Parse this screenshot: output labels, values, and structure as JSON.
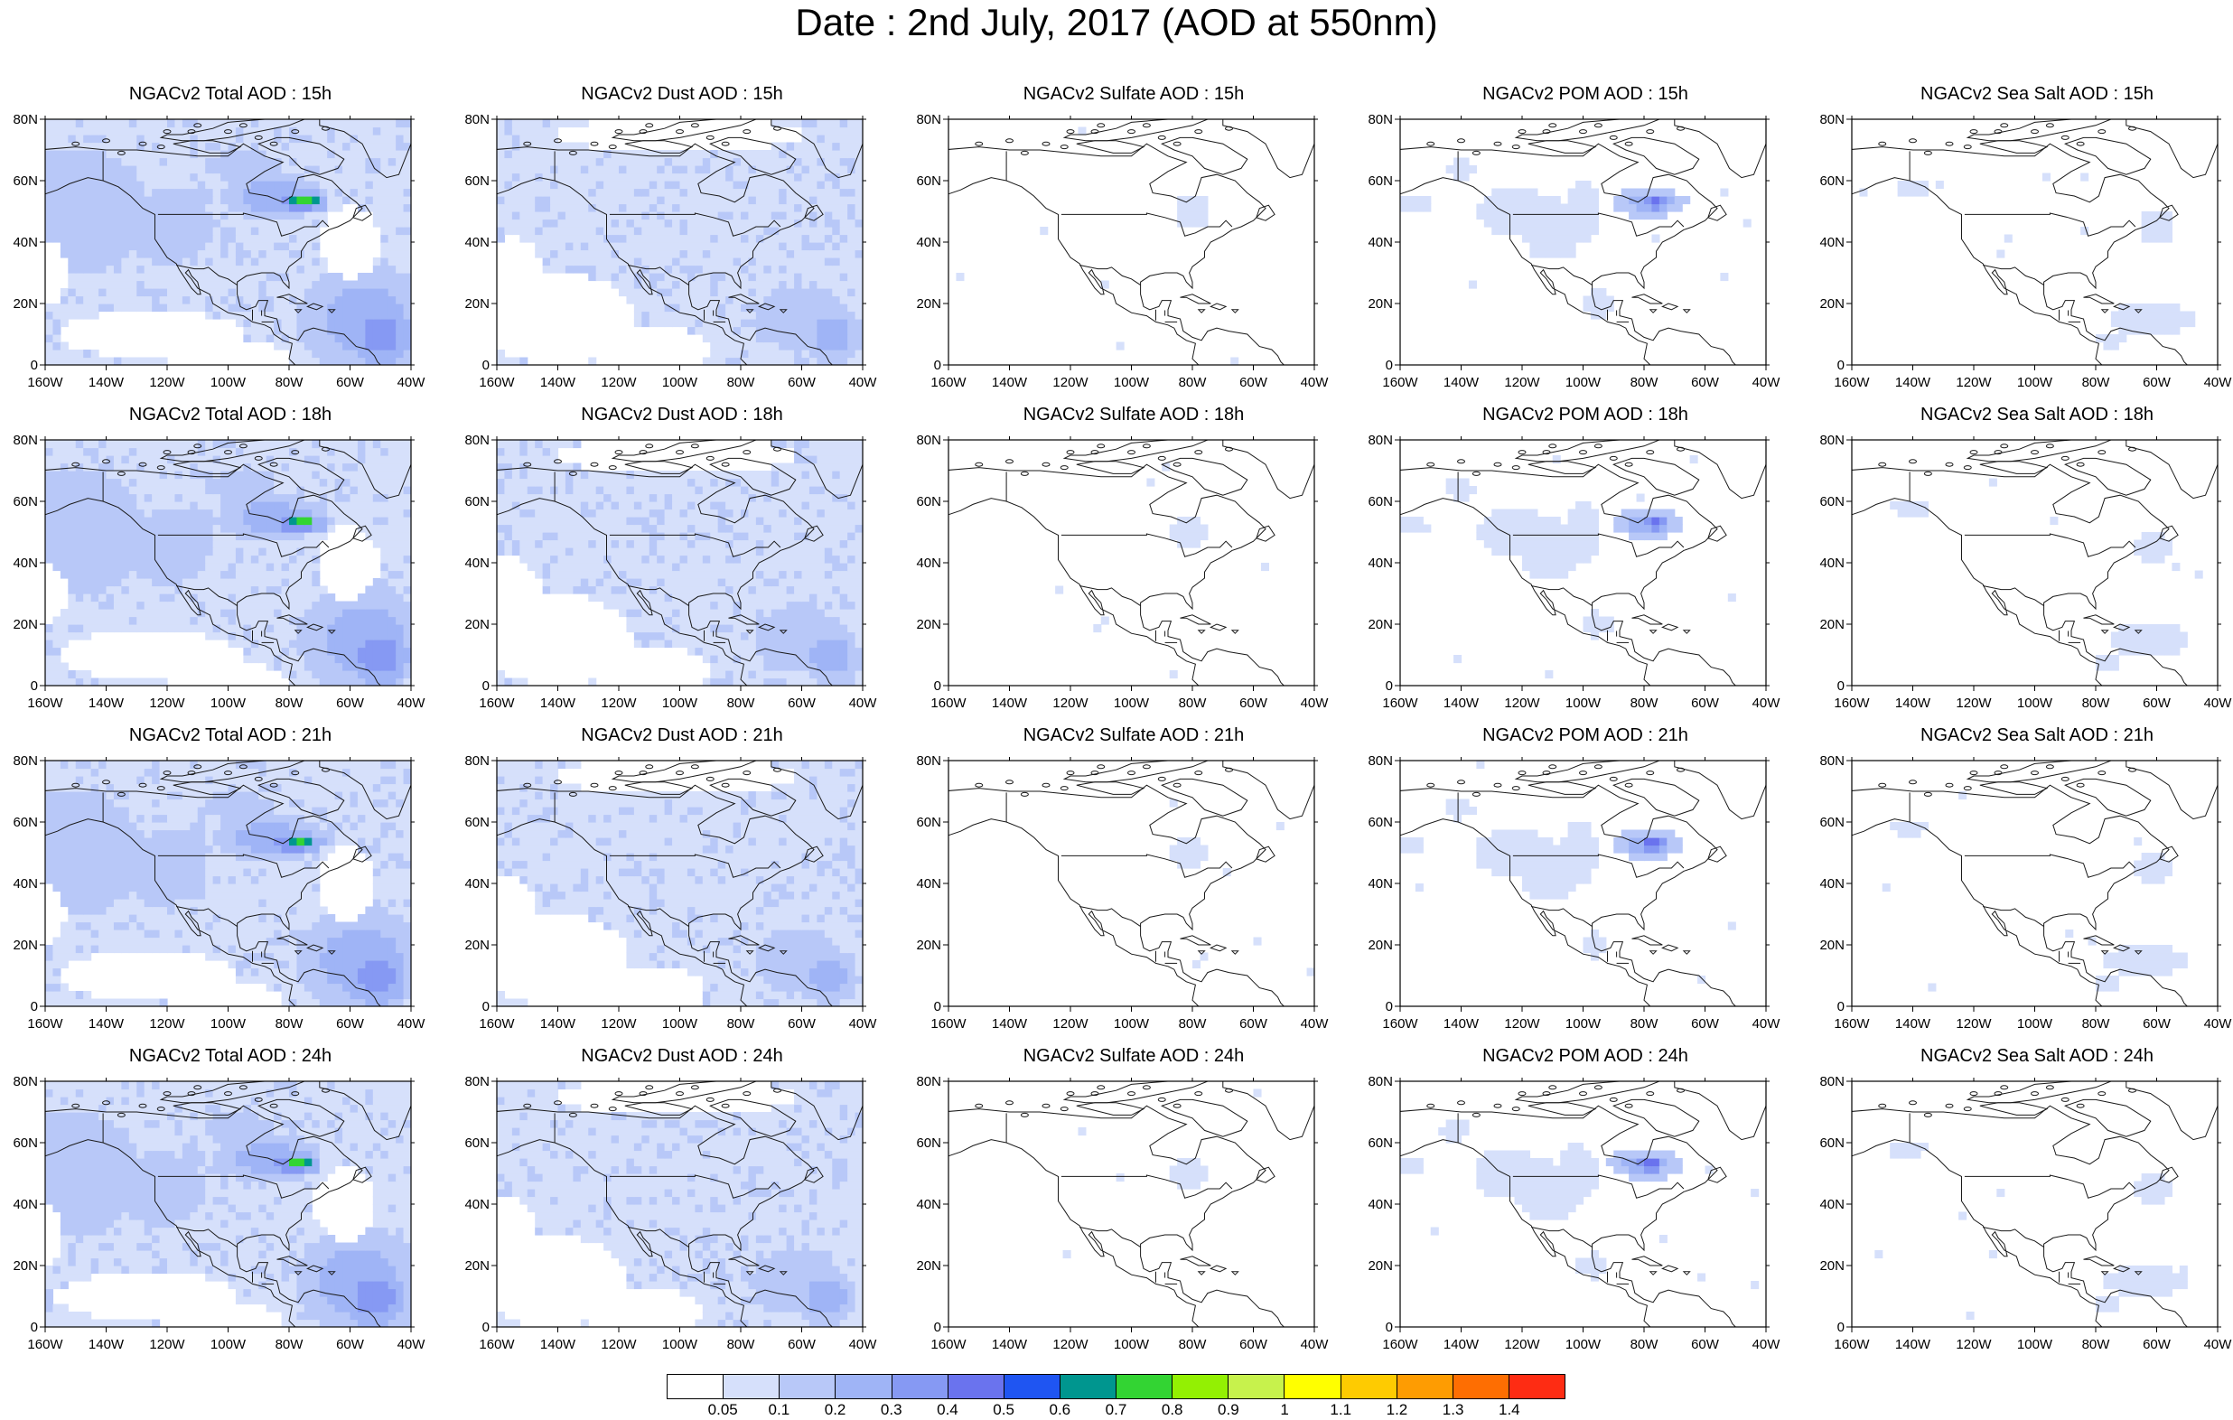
{
  "title": "Date : 2nd July, 2017 (AOD at 550nm)",
  "axes": {
    "x_ticks": [
      "160W",
      "140W",
      "120W",
      "100W",
      "80W",
      "60W",
      "40W"
    ],
    "y_ticks": [
      "0",
      "20N",
      "40N",
      "60N",
      "80N"
    ],
    "lon_range": [
      -160,
      -40
    ],
    "lat_range": [
      0,
      80
    ]
  },
  "panels": [
    {
      "title": "NGACv2 Total AOD : 15h",
      "type": "total"
    },
    {
      "title": "NGACv2 Dust AOD : 15h",
      "type": "dust"
    },
    {
      "title": "NGACv2 Sulfate AOD : 15h",
      "type": "sulfate"
    },
    {
      "title": "NGACv2 POM AOD : 15h",
      "type": "pom"
    },
    {
      "title": "NGACv2 Sea Salt AOD : 15h",
      "type": "seasalt"
    },
    {
      "title": "NGACv2 Total AOD : 18h",
      "type": "total"
    },
    {
      "title": "NGACv2 Dust AOD : 18h",
      "type": "dust"
    },
    {
      "title": "NGACv2 Sulfate AOD : 18h",
      "type": "sulfate"
    },
    {
      "title": "NGACv2 POM AOD : 18h",
      "type": "pom"
    },
    {
      "title": "NGACv2 Sea Salt AOD : 18h",
      "type": "seasalt"
    },
    {
      "title": "NGACv2 Total AOD : 21h",
      "type": "total"
    },
    {
      "title": "NGACv2 Dust AOD : 21h",
      "type": "dust"
    },
    {
      "title": "NGACv2 Sulfate AOD : 21h",
      "type": "sulfate"
    },
    {
      "title": "NGACv2 POM AOD : 21h",
      "type": "pom"
    },
    {
      "title": "NGACv2 Sea Salt AOD : 21h",
      "type": "seasalt"
    },
    {
      "title": "NGACv2 Total AOD : 24h",
      "type": "total"
    },
    {
      "title": "NGACv2 Dust AOD : 24h",
      "type": "dust"
    },
    {
      "title": "NGACv2 Sulfate AOD : 24h",
      "type": "sulfate"
    },
    {
      "title": "NGACv2 POM AOD : 24h",
      "type": "pom"
    },
    {
      "title": "NGACv2 Sea Salt  AOD : 24h",
      "type": "seasalt"
    }
  ],
  "colorbar": {
    "colors": [
      "#ffffff",
      "#d6e0fb",
      "#b8c8f8",
      "#9fb4f6",
      "#8699f3",
      "#6a73ee",
      "#1f55f2",
      "#00968f",
      "#33d433",
      "#93f003",
      "#c7f24c",
      "#ffff00",
      "#fecb01",
      "#fe9c02",
      "#fe6e02",
      "#fe2c13"
    ],
    "labels": [
      "0.05",
      "0.1",
      "0.2",
      "0.3",
      "0.4",
      "0.5",
      "0.6",
      "0.7",
      "0.8",
      "0.9",
      "1",
      "1.1",
      "1.2",
      "1.3",
      "1.4"
    ]
  }
}
